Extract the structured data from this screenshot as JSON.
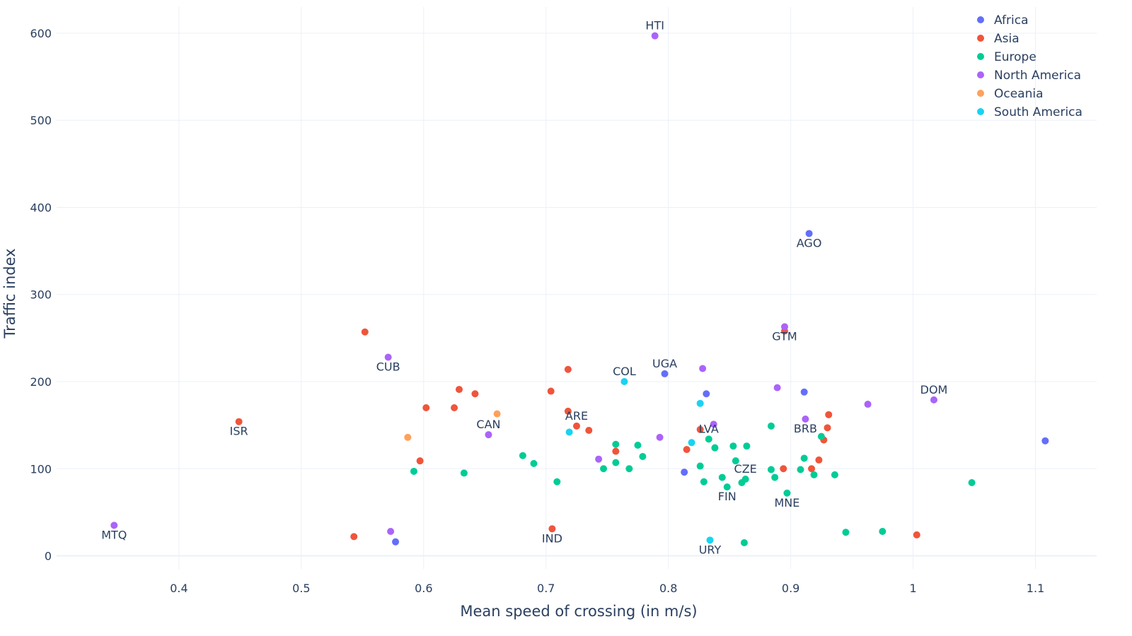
{
  "chart_data": {
    "type": "scatter",
    "xlabel": "Mean speed of crossing (in m/s)",
    "ylabel": "Traffic index",
    "xlim": [
      0.3,
      1.15
    ],
    "ylim": [
      -15,
      630
    ],
    "x_ticks": [
      0.4,
      0.5,
      0.6,
      0.7,
      0.8,
      0.9,
      1,
      1.1
    ],
    "x_tick_labels": [
      "0.4",
      "0.5",
      "0.6",
      "0.7",
      "0.8",
      "0.9",
      "1",
      "1.1"
    ],
    "y_ticks": [
      0,
      100,
      200,
      300,
      400,
      500,
      600
    ],
    "y_tick_labels": [
      "0",
      "100",
      "200",
      "300",
      "400",
      "500",
      "600"
    ],
    "grid": true,
    "legend_position": "top-right",
    "series": [
      {
        "name": "Africa",
        "color": "#636efa",
        "points": [
          {
            "x": 0.915,
            "y": 370,
            "label": "AGO"
          },
          {
            "x": 0.797,
            "y": 209,
            "label": "UGA"
          },
          {
            "x": 0.831,
            "y": 186
          },
          {
            "x": 0.911,
            "y": 188
          },
          {
            "x": 1.108,
            "y": 132
          },
          {
            "x": 0.813,
            "y": 96
          },
          {
            "x": 0.577,
            "y": 16
          }
        ]
      },
      {
        "name": "Asia",
        "color": "#EF553B",
        "points": [
          {
            "x": 0.449,
            "y": 154,
            "label": "ISR"
          },
          {
            "x": 0.552,
            "y": 257
          },
          {
            "x": 0.718,
            "y": 214
          },
          {
            "x": 0.629,
            "y": 191
          },
          {
            "x": 0.642,
            "y": 186
          },
          {
            "x": 0.704,
            "y": 189
          },
          {
            "x": 0.602,
            "y": 170
          },
          {
            "x": 0.625,
            "y": 170
          },
          {
            "x": 0.718,
            "y": 166
          },
          {
            "x": 0.725,
            "y": 149,
            "label": "ARE"
          },
          {
            "x": 0.735,
            "y": 144
          },
          {
            "x": 0.757,
            "y": 120
          },
          {
            "x": 0.826,
            "y": 145
          },
          {
            "x": 0.815,
            "y": 122
          },
          {
            "x": 0.597,
            "y": 109
          },
          {
            "x": 0.705,
            "y": 31,
            "label": "IND"
          },
          {
            "x": 0.543,
            "y": 22
          },
          {
            "x": 0.895,
            "y": 258
          },
          {
            "x": 0.931,
            "y": 162
          },
          {
            "x": 0.93,
            "y": 147
          },
          {
            "x": 0.927,
            "y": 133
          },
          {
            "x": 0.923,
            "y": 110
          },
          {
            "x": 0.894,
            "y": 100
          },
          {
            "x": 0.917,
            "y": 100
          },
          {
            "x": 1.003,
            "y": 24
          }
        ]
      },
      {
        "name": "Europe",
        "color": "#00cc96",
        "points": [
          {
            "x": 0.592,
            "y": 97
          },
          {
            "x": 0.633,
            "y": 95
          },
          {
            "x": 0.681,
            "y": 115
          },
          {
            "x": 0.69,
            "y": 106
          },
          {
            "x": 0.709,
            "y": 85
          },
          {
            "x": 0.757,
            "y": 128
          },
          {
            "x": 0.757,
            "y": 107
          },
          {
            "x": 0.747,
            "y": 100
          },
          {
            "x": 0.768,
            "y": 100
          },
          {
            "x": 0.775,
            "y": 127
          },
          {
            "x": 0.779,
            "y": 114
          },
          {
            "x": 0.833,
            "y": 134,
            "label": "LVA"
          },
          {
            "x": 0.838,
            "y": 124
          },
          {
            "x": 0.826,
            "y": 103
          },
          {
            "x": 0.829,
            "y": 85
          },
          {
            "x": 0.844,
            "y": 90
          },
          {
            "x": 0.848,
            "y": 79,
            "label": "FIN"
          },
          {
            "x": 0.853,
            "y": 126
          },
          {
            "x": 0.864,
            "y": 126
          },
          {
            "x": 0.855,
            "y": 109
          },
          {
            "x": 0.863,
            "y": 88,
            "label": "CZE"
          },
          {
            "x": 0.86,
            "y": 84
          },
          {
            "x": 0.862,
            "y": 15
          },
          {
            "x": 0.884,
            "y": 149
          },
          {
            "x": 0.884,
            "y": 99
          },
          {
            "x": 0.887,
            "y": 90
          },
          {
            "x": 0.897,
            "y": 72,
            "label": "MNE"
          },
          {
            "x": 0.908,
            "y": 99
          },
          {
            "x": 0.911,
            "y": 112
          },
          {
            "x": 0.919,
            "y": 93
          },
          {
            "x": 0.925,
            "y": 137
          },
          {
            "x": 0.936,
            "y": 93
          },
          {
            "x": 0.945,
            "y": 27
          },
          {
            "x": 0.975,
            "y": 28
          },
          {
            "x": 1.048,
            "y": 84
          }
        ]
      },
      {
        "name": "North America",
        "color": "#ab63fa",
        "points": [
          {
            "x": 0.789,
            "y": 597,
            "label": "HTI"
          },
          {
            "x": 0.895,
            "y": 263,
            "label": "GTM"
          },
          {
            "x": 0.571,
            "y": 228,
            "label": "CUB"
          },
          {
            "x": 0.828,
            "y": 215
          },
          {
            "x": 0.889,
            "y": 193
          },
          {
            "x": 0.963,
            "y": 174
          },
          {
            "x": 1.017,
            "y": 179,
            "label": "DOM"
          },
          {
            "x": 0.912,
            "y": 157,
            "label": "BRB"
          },
          {
            "x": 0.837,
            "y": 151
          },
          {
            "x": 0.793,
            "y": 136
          },
          {
            "x": 0.653,
            "y": 139,
            "label": "CAN"
          },
          {
            "x": 0.743,
            "y": 111
          },
          {
            "x": 0.347,
            "y": 35,
            "label": "MTQ"
          },
          {
            "x": 0.573,
            "y": 28
          }
        ]
      },
      {
        "name": "Oceania",
        "color": "#FFA15A",
        "points": [
          {
            "x": 0.66,
            "y": 163
          },
          {
            "x": 0.587,
            "y": 136
          }
        ]
      },
      {
        "name": "South America",
        "color": "#19d3f3",
        "points": [
          {
            "x": 0.764,
            "y": 200,
            "label": "COL"
          },
          {
            "x": 0.826,
            "y": 175
          },
          {
            "x": 0.719,
            "y": 142
          },
          {
            "x": 0.819,
            "y": 130
          },
          {
            "x": 0.834,
            "y": 18,
            "label": "URY"
          }
        ]
      }
    ]
  }
}
